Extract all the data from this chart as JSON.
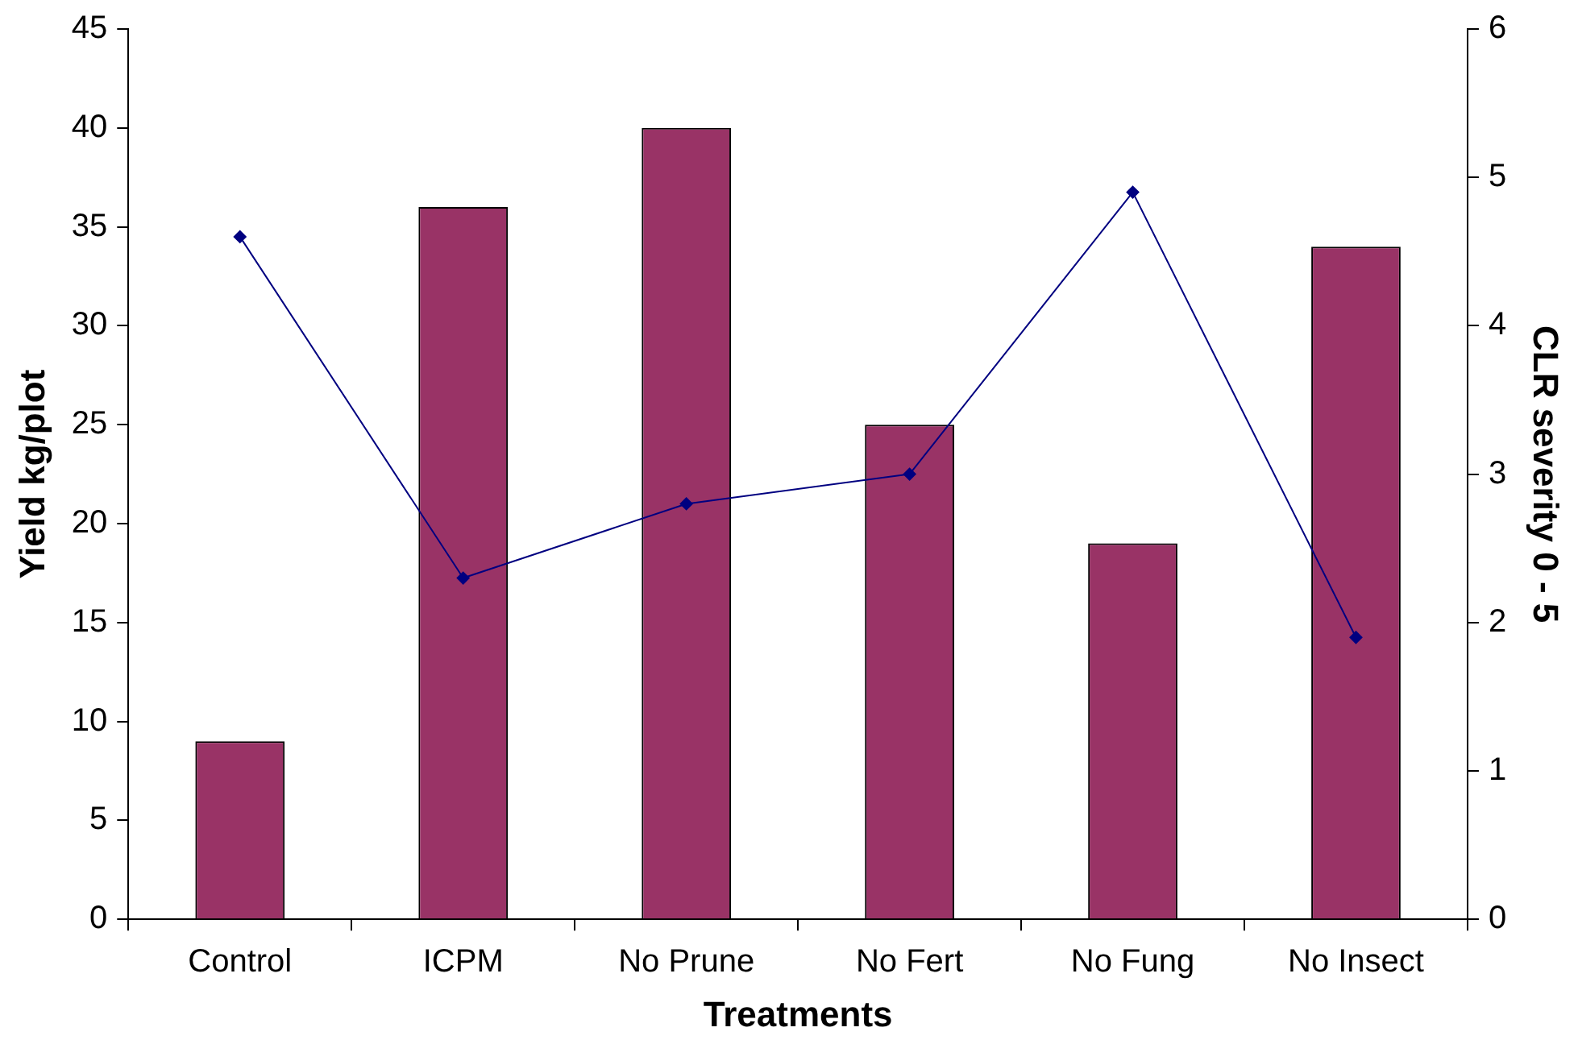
{
  "chart_data": {
    "type": "bar",
    "xlabel": "Treatments",
    "ylabel": "Yield kg/plot",
    "y2label": "CLR severity 0 - 5",
    "categories": [
      "Control",
      "ICPM",
      "No Prune",
      "No Fert",
      "No Fung",
      "No Insect"
    ],
    "series": [
      {
        "color": "#993366",
        "values": [
          9,
          36,
          40,
          25,
          19,
          34
        ]
      },
      {
        "type": "line",
        "axis": "y2",
        "color": "#000080",
        "values": [
          4.6,
          2.3,
          2.8,
          3.0,
          4.9,
          1.9
        ],
        "marker": "diamond",
        "line_style": "solid"
      }
    ],
    "ylim": [
      0,
      45
    ],
    "yticks": [
      0,
      5,
      10,
      15,
      20,
      25,
      30,
      35,
      40,
      45
    ],
    "y2lim": [
      0,
      6
    ],
    "y2ticks": [
      0,
      1,
      2,
      3,
      4,
      5,
      6
    ],
    "grid": false,
    "legend": false
  }
}
